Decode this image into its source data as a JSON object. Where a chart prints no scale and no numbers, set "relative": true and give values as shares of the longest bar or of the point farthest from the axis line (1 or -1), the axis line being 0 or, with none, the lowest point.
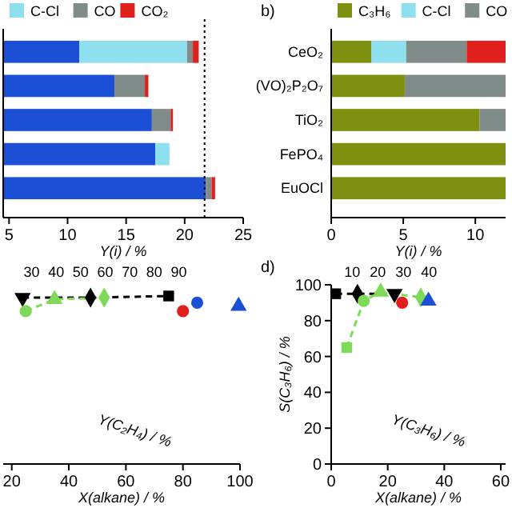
{
  "chart_data": [
    {
      "type": "bar",
      "orientation": "horizontal",
      "stacked": true,
      "categories": [
        null,
        null,
        null,
        null,
        null
      ],
      "xlim": [
        4.5,
        25
      ],
      "xticks": [
        5,
        10,
        15,
        20,
        25
      ],
      "xlabel": "Y(i) / %",
      "legend": "top",
      "ref_lines": [
        {
          "axis": "x",
          "value": 21.7,
          "line_style": "dotted",
          "color": "#000000"
        }
      ],
      "series": [
        {
          "color": "#1a4fd6",
          "values": [
            11,
            14,
            17.2,
            17.5,
            21.8
          ]
        },
        {
          "name": "C-Cl",
          "color": "#8fe0ee",
          "base": [
            11,
            null,
            null,
            17.5,
            null
          ],
          "values": [
            9.2,
            null,
            null,
            1.2,
            null
          ]
        },
        {
          "name": "CO",
          "color": "#7f8c8a",
          "base": [
            20.2,
            14,
            17.2,
            null,
            21.8
          ],
          "values": [
            0.5,
            2.6,
            1.6,
            null,
            0.5
          ]
        },
        {
          "name": "CO₂",
          "color": "#e0201c",
          "base": [
            20.7,
            16.6,
            18.8,
            null,
            22.3
          ],
          "values": [
            0.5,
            0.3,
            0.2,
            null,
            0.3
          ]
        }
      ]
    },
    {
      "type": "bar",
      "orientation": "horizontal",
      "stacked": true,
      "title": "b)",
      "categories": [
        "CeO₂",
        "(VO)₂P₂O₇",
        "TiO₂",
        "FePO₄",
        "EuOCl"
      ],
      "xlim": [
        0,
        12.1
      ],
      "xticks": [
        0,
        5,
        10
      ],
      "xlabel": "Y(i) / %",
      "legend": "top",
      "series": [
        {
          "name": "C₃H₆",
          "color": "#7f8f10",
          "values": [
            2.8,
            5.1,
            10.3,
            12.1,
            12.1
          ]
        },
        {
          "name": "C-Cl",
          "color": "#8fe0ee",
          "values": [
            2.4,
            null,
            null,
            null,
            null
          ]
        },
        {
          "name": "CO",
          "color": "#7f8c8a",
          "values": [
            4.2,
            7.0,
            1.8,
            null,
            null
          ]
        },
        {
          "color": "#e0201c",
          "values": [
            2.7,
            null,
            null,
            null,
            null
          ]
        }
      ]
    },
    {
      "type": "scatter",
      "relative": true,
      "xlim": [
        17,
        100
      ],
      "xticks": [
        20,
        40,
        60,
        80,
        100
      ],
      "tick_labels": "x",
      "xlabel": "X(alkane) / %",
      "annotations": [
        "30",
        "40",
        "50",
        "60",
        "70",
        "80",
        "90",
        "Y(C₂H₄) / %"
      ],
      "series": [
        {
          "type": "line",
          "line_style": "dashed",
          "color": "#000000",
          "marker": "none",
          "x": [
            23.8,
            47.6,
            75
          ],
          "values": [
            0.99,
            0.99,
            1
          ]
        },
        {
          "type": "line",
          "line_style": "dashed",
          "color": "#7ed957",
          "marker": "none",
          "x": [
            24.9,
            35,
            52.4
          ],
          "values": [
            0.91,
            0.98,
            0.99
          ]
        },
        {
          "color": "#000000",
          "marker": "triangle-down",
          "x": [
            23.8
          ],
          "values": [
            0.99
          ]
        },
        {
          "color": "#7ed957",
          "marker": "circle",
          "x": [
            24.9
          ],
          "values": [
            0.91
          ]
        },
        {
          "color": "#7ed957",
          "marker": "triangle",
          "x": [
            35
          ],
          "values": [
            0.98
          ]
        },
        {
          "color": "#000000",
          "marker": "diamond",
          "x": [
            47.6
          ],
          "values": [
            0.99
          ]
        },
        {
          "color": "#7ed957",
          "marker": "diamond",
          "x": [
            52.4
          ],
          "values": [
            0.99
          ]
        },
        {
          "color": "#000000",
          "marker": "square",
          "x": [
            75
          ],
          "values": [
            1
          ]
        },
        {
          "color": "#e0201c",
          "marker": "circle",
          "x": [
            80
          ],
          "values": [
            0.91
          ]
        },
        {
          "color": "#1a4fd6",
          "marker": "circle",
          "x": [
            85
          ],
          "values": [
            0.96
          ]
        },
        {
          "color": "#1a4fd6",
          "marker": "triangle",
          "x": [
            99.5
          ],
          "values": [
            0.94
          ]
        }
      ]
    },
    {
      "type": "scatter",
      "title": "d)",
      "xlim": [
        0,
        61.7
      ],
      "xticks": [
        0,
        20,
        40,
        60
      ],
      "ylim": [
        0,
        100
      ],
      "yticks": [
        0,
        20,
        40,
        60,
        80,
        100
      ],
      "xlabel": "X(alkane) / %",
      "ylabel": "S(C₃H₆) / %",
      "annotations": [
        "10",
        "20",
        "30",
        "40",
        "Y(C₃H₆) / %"
      ],
      "series": [
        {
          "type": "line",
          "line_style": "dashed",
          "color": "#000000",
          "marker": "none",
          "x": [
            1.6,
            9.3,
            22.4
          ],
          "values": [
            95,
            95,
            95
          ]
        },
        {
          "type": "line",
          "line_style": "dashed",
          "color": "#7ed957",
          "marker": "none",
          "x": [
            5.5,
            11.5,
            17.5,
            31.7
          ],
          "values": [
            65,
            91,
            96,
            93
          ]
        },
        {
          "color": "#000000",
          "marker": "square",
          "x": [
            1.6
          ],
          "values": [
            95
          ]
        },
        {
          "color": "#000000",
          "marker": "diamond",
          "x": [
            9.3
          ],
          "values": [
            95
          ]
        },
        {
          "color": "#7ed957",
          "marker": "square",
          "x": [
            5.5
          ],
          "values": [
            65
          ]
        },
        {
          "color": "#7ed957",
          "marker": "circle",
          "x": [
            11.5
          ],
          "values": [
            91
          ]
        },
        {
          "color": "#7ed957",
          "marker": "triangle",
          "x": [
            17.5
          ],
          "values": [
            96
          ]
        },
        {
          "color": "#000000",
          "marker": "triangle-down",
          "x": [
            22.4
          ],
          "values": [
            95
          ]
        },
        {
          "color": "#e0201c",
          "marker": "circle",
          "x": [
            25.1
          ],
          "values": [
            90
          ]
        },
        {
          "color": "#7ed957",
          "marker": "diamond",
          "x": [
            31.7
          ],
          "values": [
            93
          ]
        },
        {
          "color": "#1a4fd6",
          "marker": "triangle",
          "x": [
            34.4
          ],
          "values": [
            91
          ]
        }
      ]
    }
  ]
}
